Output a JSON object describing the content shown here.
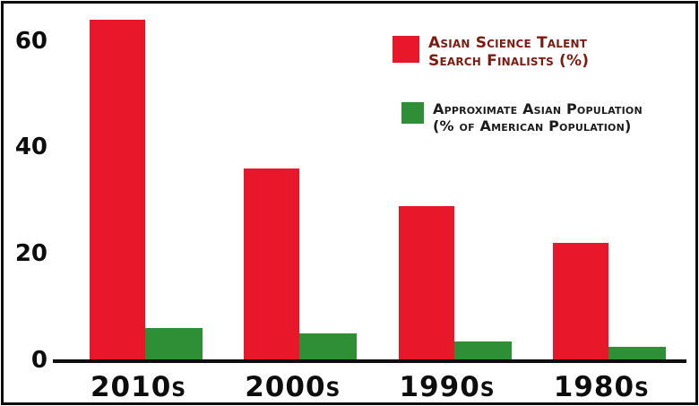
{
  "chart_data": {
    "type": "bar",
    "title": "",
    "xlabel": "",
    "ylabel": "",
    "categories": [
      "2010s",
      "2000s",
      "1990s",
      "1980s"
    ],
    "series": [
      {
        "name": "Asian Science Talent Search Finalists (%)",
        "color": "#e8182a",
        "values": [
          64,
          36,
          29,
          22
        ]
      },
      {
        "name": "Approximate Asian Population (% of American Population)",
        "color": "#2f8f36",
        "values": [
          6,
          5,
          3.5,
          2.5
        ]
      }
    ],
    "ylim": [
      0,
      66
    ],
    "yticks": [
      0,
      20,
      40,
      60
    ],
    "grid": false,
    "legend_position": "top-right"
  },
  "legend": {
    "item1_line1": "Asian Science Talent",
    "item1_line2": "Search Finalists (%)",
    "item2_line1": "Approximate Asian Population",
    "item2_line2": "(% of American Population)"
  },
  "colors": {
    "red_series": "#e8182a",
    "green_series": "#2f8f36",
    "legend1_text": "#7e1b10",
    "legend2_text": "#1c1c1c",
    "axis": "#0d0d0d"
  }
}
